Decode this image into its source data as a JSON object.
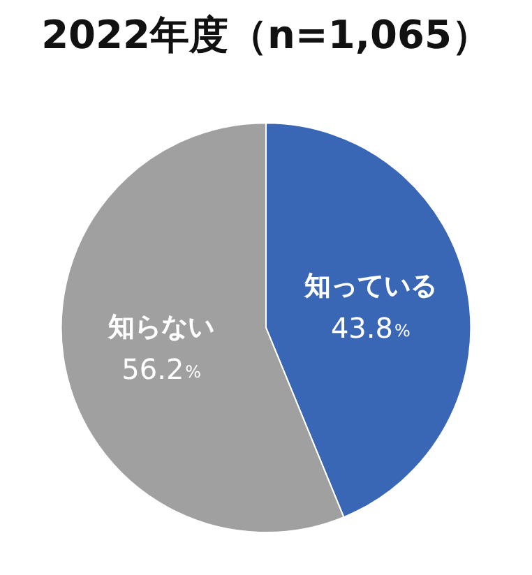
{
  "chart_data": {
    "type": "pie",
    "title": "2022年度（n=1,065）",
    "categories": [
      "知っている",
      "知らない"
    ],
    "values": [
      43.8,
      56.2
    ],
    "colors": [
      "#3a67b5",
      "#a0a0a0"
    ],
    "value_labels": [
      "43.8%",
      "56.2%"
    ],
    "legend": false
  }
}
